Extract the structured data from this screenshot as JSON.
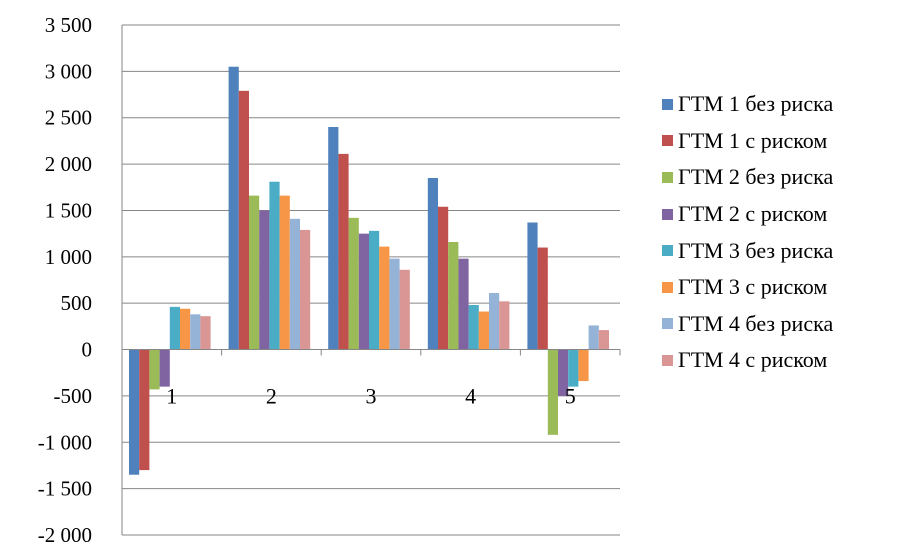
{
  "chart_data": {
    "type": "bar",
    "categories": [
      "1",
      "2",
      "3",
      "4",
      "5"
    ],
    "ylim": [
      -2000,
      3500
    ],
    "yticks": [
      3500,
      3000,
      2500,
      2000,
      1500,
      1000,
      500,
      0,
      -500,
      -1000,
      -1500,
      -2000
    ],
    "ytick_labels": [
      "3 500",
      "3 000",
      "2 500",
      "2 000",
      "1 500",
      "1 000",
      "500",
      "0",
      "-500",
      "-1 000",
      "-1 500",
      "-2 000"
    ],
    "grid": "horizontal",
    "legend_position": "right",
    "series": [
      {
        "name": "ГТМ 1 без риска",
        "color": "#4F81BD",
        "values": [
          -1350,
          3050,
          2400,
          1850,
          1370
        ]
      },
      {
        "name": "ГТМ 1 с риском",
        "color": "#C0504D",
        "values": [
          -1300,
          2790,
          2110,
          1540,
          1100
        ]
      },
      {
        "name": "ГТМ 2 без риска",
        "color": "#9BBB59",
        "values": [
          -430,
          1660,
          1420,
          1160,
          -920
        ]
      },
      {
        "name": "ГТМ 2 с риском",
        "color": "#8064A2",
        "values": [
          -400,
          1500,
          1250,
          980,
          -500
        ]
      },
      {
        "name": "ГТМ 3 без риска",
        "color": "#4BACC6",
        "values": [
          460,
          1810,
          1280,
          480,
          -400
        ]
      },
      {
        "name": "ГТМ 3 с риском",
        "color": "#F79646",
        "values": [
          440,
          1660,
          1110,
          410,
          -340
        ]
      },
      {
        "name": "ГТМ 4 без риска",
        "color": "#95B3D7",
        "values": [
          380,
          1410,
          980,
          610,
          260
        ]
      },
      {
        "name": "ГТМ 4 с риском",
        "color": "#D99694",
        "values": [
          360,
          1290,
          860,
          520,
          210
        ]
      }
    ]
  }
}
